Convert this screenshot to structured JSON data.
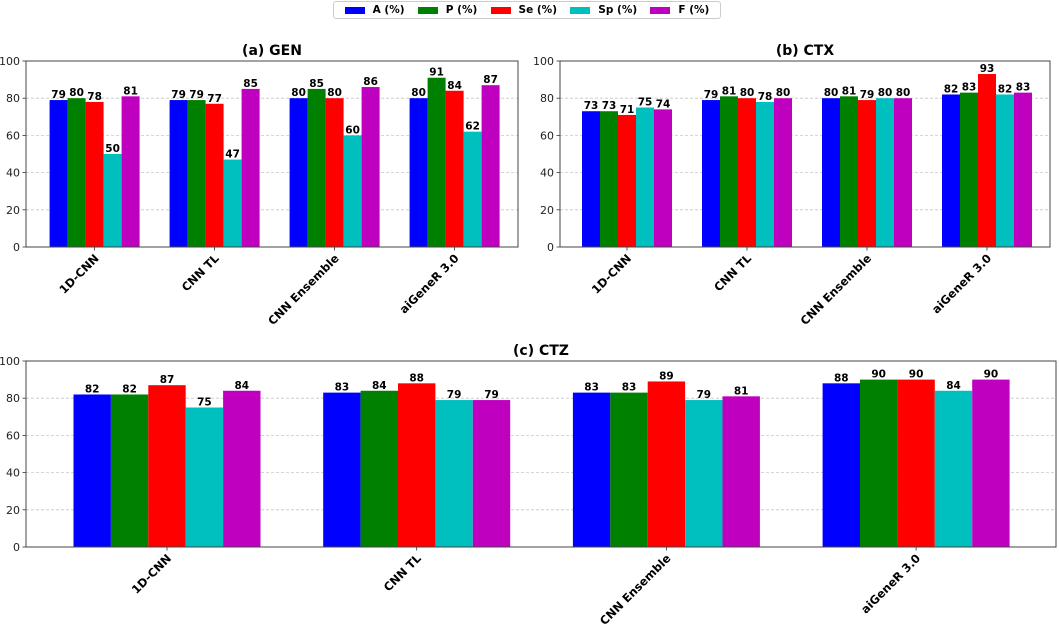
{
  "legend": [
    {
      "label": "A (%)",
      "color": "#0000ff"
    },
    {
      "label": "P (%)",
      "color": "#008000"
    },
    {
      "label": "Se (%)",
      "color": "#ff0000"
    },
    {
      "label": "Sp (%)",
      "color": "#00bfbf"
    },
    {
      "label": "F (%)",
      "color": "#bf00bf"
    }
  ],
  "chart_data": [
    {
      "type": "bar",
      "title": "(a) GEN",
      "categories": [
        "1D-CNN",
        "CNN TL",
        "CNN Ensemble",
        "aiGeneR 3.0"
      ],
      "ylim": [
        0,
        100
      ],
      "yticks": [
        "0",
        "20",
        "40",
        "60",
        "80",
        "100"
      ],
      "grid": true,
      "series": [
        {
          "name": "A (%)",
          "values": [
            79,
            79,
            80,
            80
          ]
        },
        {
          "name": "P (%)",
          "values": [
            80,
            79,
            85,
            91
          ]
        },
        {
          "name": "Se (%)",
          "values": [
            78,
            77,
            80,
            84
          ]
        },
        {
          "name": "Sp (%)",
          "values": [
            50,
            47,
            60,
            62
          ]
        },
        {
          "name": "F (%)",
          "values": [
            81,
            85,
            86,
            87
          ]
        }
      ]
    },
    {
      "type": "bar",
      "title": "(b) CTX",
      "categories": [
        "1D-CNN",
        "CNN TL",
        "CNN Ensemble",
        "aiGeneR 3.0"
      ],
      "ylim": [
        0,
        100
      ],
      "yticks": [
        "0",
        "20",
        "40",
        "60",
        "80",
        "100"
      ],
      "grid": true,
      "series": [
        {
          "name": "A (%)",
          "values": [
            73,
            79,
            80,
            82
          ]
        },
        {
          "name": "P (%)",
          "values": [
            73,
            81,
            81,
            83
          ]
        },
        {
          "name": "Se (%)",
          "values": [
            71,
            80,
            79,
            93
          ]
        },
        {
          "name": "Sp (%)",
          "values": [
            75,
            78,
            80,
            82
          ]
        },
        {
          "name": "F (%)",
          "values": [
            74,
            80,
            80,
            83
          ]
        }
      ]
    },
    {
      "type": "bar",
      "title": "(c) CTZ",
      "categories": [
        "1D-CNN",
        "CNN TL",
        "CNN Ensemble",
        "aiGeneR 3.0"
      ],
      "ylim": [
        0,
        100
      ],
      "yticks": [
        "0",
        "20",
        "40",
        "60",
        "80",
        "100"
      ],
      "grid": true,
      "series": [
        {
          "name": "A (%)",
          "values": [
            82,
            83,
            83,
            88
          ]
        },
        {
          "name": "P (%)",
          "values": [
            82,
            84,
            83,
            90
          ]
        },
        {
          "name": "Se (%)",
          "values": [
            87,
            88,
            89,
            90
          ]
        },
        {
          "name": "Sp (%)",
          "values": [
            75,
            79,
            79,
            84
          ]
        },
        {
          "name": "F (%)",
          "values": [
            84,
            79,
            81,
            90
          ]
        }
      ]
    }
  ]
}
